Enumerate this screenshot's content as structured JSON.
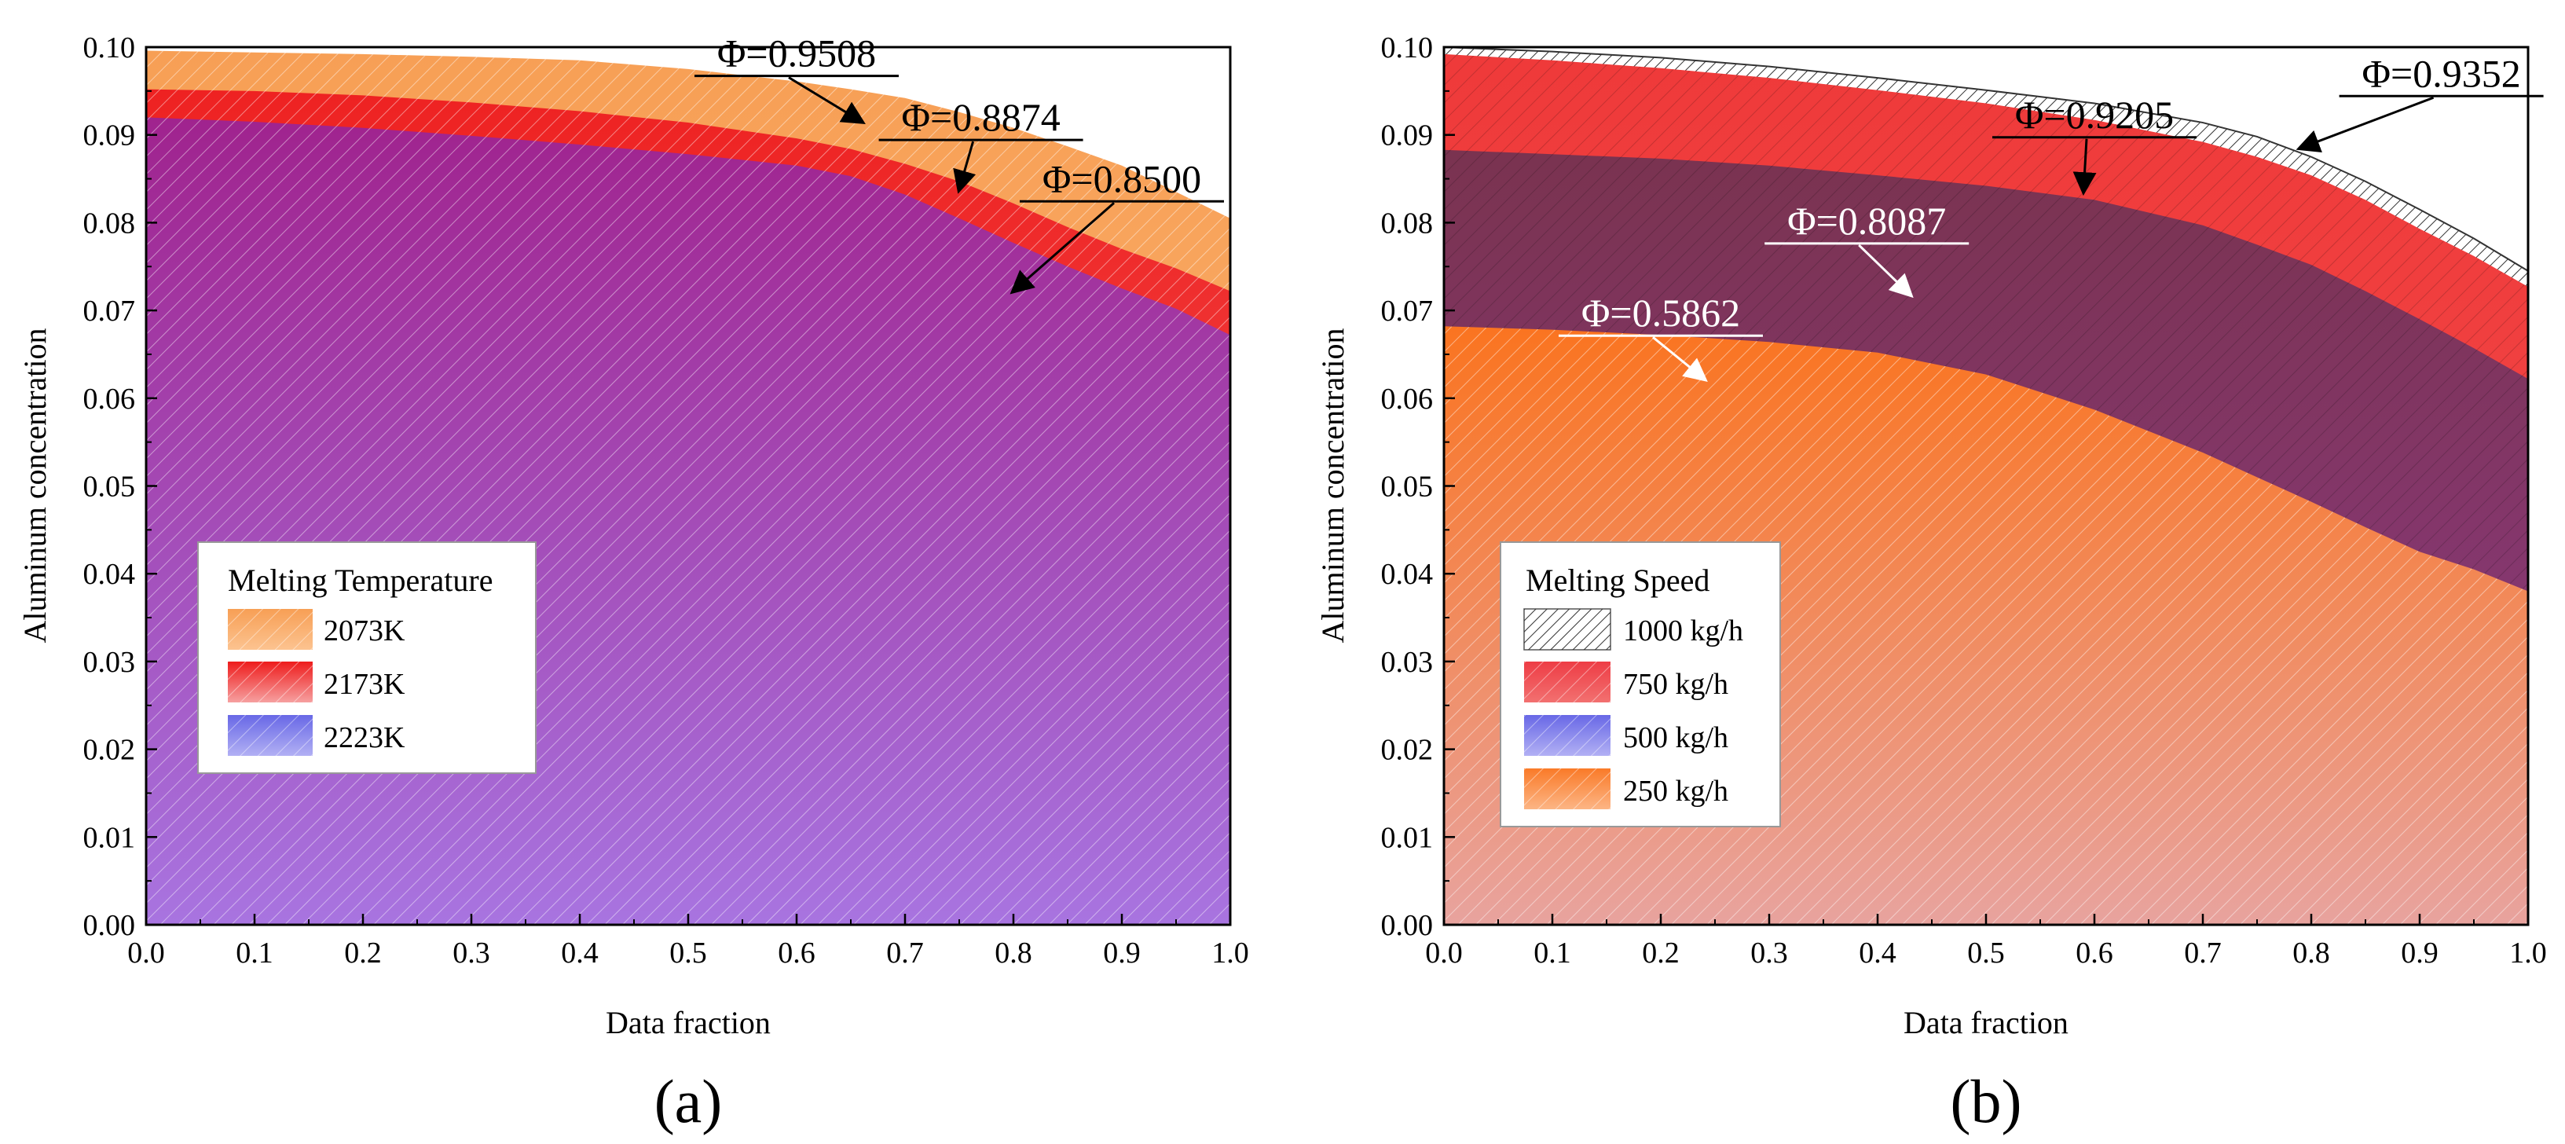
{
  "colors": {
    "orange": "#f7a860",
    "red": "#f23a3a",
    "purple": "#9e3fb3",
    "black_hatch": "#666666",
    "salmon": "#f29c8c",
    "deep_orange": "#fb7d2a",
    "dark_purple": "#8a3366",
    "bright_red": "#ee3c45",
    "legend_blue": "#7a78e8"
  },
  "chart_data": [
    {
      "type": "area",
      "panel_label": "(a)",
      "xlabel": "Data fraction",
      "ylabel": "Aluminum concentration",
      "xlim": [
        0,
        1
      ],
      "ylim": [
        0,
        0.1
      ],
      "xticks": [
        "0.0",
        "0.1",
        "0.2",
        "0.3",
        "0.4",
        "0.5",
        "0.6",
        "0.7",
        "0.8",
        "0.9",
        "1.0"
      ],
      "yticks": [
        "0.00",
        "0.01",
        "0.02",
        "0.03",
        "0.04",
        "0.05",
        "0.06",
        "0.07",
        "0.08",
        "0.09",
        "0.10"
      ],
      "legend": {
        "title": "Melting Temperature",
        "position": "lower-left",
        "entries": [
          "2073K",
          "2173K",
          "2223K"
        ],
        "swatch_colors": [
          "#f7a860",
          "#ee2e2e",
          "#7a78e8"
        ]
      },
      "series": [
        {
          "name": "2073K",
          "color": "#f7a860",
          "x": [
            0,
            0.05,
            0.1,
            0.2,
            0.3,
            0.4,
            0.5,
            0.6,
            0.65,
            0.7,
            0.75,
            0.8,
            0.85,
            0.9,
            0.95,
            1.0
          ],
          "y": [
            0.0996,
            0.0995,
            0.0994,
            0.0992,
            0.0989,
            0.0985,
            0.0975,
            0.0961,
            0.0952,
            0.0942,
            0.0926,
            0.0908,
            0.0887,
            0.0865,
            0.0835,
            0.0805
          ]
        },
        {
          "name": "2173K",
          "color": "#f23a3a",
          "x": [
            0,
            0.1,
            0.2,
            0.3,
            0.4,
            0.5,
            0.6,
            0.65,
            0.7,
            0.75,
            0.8,
            0.85,
            0.9,
            0.95,
            1.0
          ],
          "y": [
            0.0952,
            0.095,
            0.0945,
            0.0937,
            0.0927,
            0.0914,
            0.0896,
            0.0884,
            0.0867,
            0.0847,
            0.0822,
            0.0795,
            0.077,
            0.0748,
            0.0722
          ]
        },
        {
          "name": "2223K",
          "color": "#9e3fb3",
          "x": [
            0,
            0.1,
            0.2,
            0.3,
            0.4,
            0.5,
            0.6,
            0.65,
            0.7,
            0.75,
            0.8,
            0.85,
            0.9,
            0.95,
            1.0
          ],
          "y": [
            0.092,
            0.0915,
            0.0908,
            0.0899,
            0.0889,
            0.0878,
            0.0865,
            0.0853,
            0.0832,
            0.0805,
            0.0777,
            0.075,
            0.0725,
            0.0702,
            0.0672
          ]
        }
      ],
      "annotations": [
        {
          "text": "Φ=0.9508",
          "text_x": 0.6,
          "text_y": 0.0978,
          "arrow_to": [
            0.66,
            0.0915
          ]
        },
        {
          "text": "Φ=0.8874",
          "text_x": 0.77,
          "text_y": 0.0905,
          "arrow_to": [
            0.75,
            0.0838
          ]
        },
        {
          "text": "Φ=0.8500",
          "text_x": 0.9,
          "text_y": 0.0835,
          "arrow_to": [
            0.8,
            0.0722
          ]
        }
      ]
    },
    {
      "type": "area",
      "panel_label": "(b)",
      "xlabel": "Data fraction",
      "ylabel": "Aluminum concentration",
      "xlim": [
        0,
        1
      ],
      "ylim": [
        0,
        0.1
      ],
      "xticks": [
        "0.0",
        "0.1",
        "0.2",
        "0.3",
        "0.4",
        "0.5",
        "0.6",
        "0.7",
        "0.8",
        "0.9",
        "1.0"
      ],
      "yticks": [
        "0.00",
        "0.01",
        "0.02",
        "0.03",
        "0.04",
        "0.05",
        "0.06",
        "0.07",
        "0.08",
        "0.09",
        "0.10"
      ],
      "legend": {
        "title": "Melting Speed",
        "position": "lower-left",
        "entries": [
          "1000 kg/h",
          "750 kg/h",
          "500 kg/h",
          "250 kg/h"
        ],
        "swatch_colors": [
          "#ffffff",
          "#ee3c45",
          "#7a78e8",
          "#fb8a45"
        ]
      },
      "series": [
        {
          "name": "1000 kg/h",
          "color": "#ffffff",
          "x": [
            0,
            0.1,
            0.2,
            0.3,
            0.4,
            0.5,
            0.6,
            0.7,
            0.75,
            0.8,
            0.85,
            0.9,
            0.95,
            1.0
          ],
          "y": [
            0.1,
            0.0995,
            0.0988,
            0.0978,
            0.0965,
            0.0951,
            0.0936,
            0.0914,
            0.0898,
            0.0875,
            0.0847,
            0.0815,
            0.0782,
            0.0745
          ]
        },
        {
          "name": "750 kg/h",
          "color": "#f23a3a",
          "x": [
            0,
            0.1,
            0.2,
            0.3,
            0.4,
            0.5,
            0.6,
            0.7,
            0.75,
            0.8,
            0.85,
            0.9,
            0.95,
            1.0
          ],
          "y": [
            0.0992,
            0.0985,
            0.0976,
            0.0965,
            0.0951,
            0.0936,
            0.0917,
            0.0892,
            0.0875,
            0.0854,
            0.0826,
            0.0793,
            0.0762,
            0.0727
          ]
        },
        {
          "name": "500 kg/h",
          "color": "#8a3366",
          "x": [
            0,
            0.1,
            0.2,
            0.3,
            0.4,
            0.5,
            0.6,
            0.7,
            0.75,
            0.8,
            0.85,
            0.9,
            0.95,
            1.0
          ],
          "y": [
            0.0883,
            0.0878,
            0.0873,
            0.0865,
            0.0854,
            0.0842,
            0.0826,
            0.0797,
            0.0775,
            0.0752,
            0.0722,
            0.069,
            0.0657,
            0.0622
          ]
        },
        {
          "name": "250 kg/h",
          "color": "#f29c8c",
          "x": [
            0,
            0.1,
            0.2,
            0.3,
            0.4,
            0.5,
            0.6,
            0.7,
            0.75,
            0.8,
            0.85,
            0.9,
            0.95,
            1.0
          ],
          "y": [
            0.0682,
            0.0678,
            0.0672,
            0.0664,
            0.0652,
            0.0627,
            0.0587,
            0.0538,
            0.051,
            0.0482,
            0.0453,
            0.0425,
            0.0405,
            0.038
          ]
        }
      ],
      "annotations": [
        {
          "text": "Φ=0.9352",
          "text_x": 0.92,
          "text_y": 0.0955,
          "arrow_to": [
            0.79,
            0.0885
          ]
        },
        {
          "text": "Φ=0.9205",
          "text_x": 0.6,
          "text_y": 0.0908,
          "arrow_to": [
            0.59,
            0.0836
          ]
        },
        {
          "text": "Φ=0.8087",
          "text_x": 0.39,
          "text_y": 0.0787,
          "arrow_to": [
            0.43,
            0.0718
          ]
        },
        {
          "text": "Φ=0.5862",
          "text_x": 0.2,
          "text_y": 0.0682,
          "arrow_to": [
            0.24,
            0.0622
          ]
        }
      ]
    }
  ]
}
